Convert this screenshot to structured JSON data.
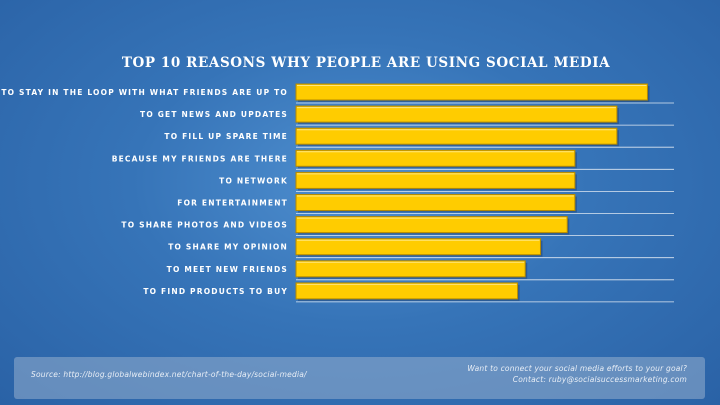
{
  "chart_data": {
    "type": "bar",
    "orientation": "horizontal",
    "title": "TOP 10 REASONS WHY PEOPLE ARE USING SOCIAL MEDIA",
    "categories": [
      "TO STAY IN THE LOOP WITH WHAT FRIENDS ARE UP TO",
      "TO GET NEWS AND UPDATES",
      "TO FILL UP SPARE TIME",
      "BECAUSE MY FRIENDS ARE THERE",
      "TO NETWORK",
      "FOR ENTERTAINMENT",
      "TO SHARE PHOTOS AND VIDEOS",
      "TO SHARE MY OPINION",
      "TO MEET NEW FRIENDS",
      "TO FIND PRODUCTS TO BUY"
    ],
    "values": [
      92,
      84,
      84,
      73,
      73,
      73,
      71,
      64,
      60,
      58
    ],
    "xlim": [
      0,
      100
    ],
    "bar_color": "#ffcc00",
    "bar_border_color": "#b58a00",
    "gridline_color": "#dfe8f2"
  },
  "footer": {
    "source": "Source: http://blog.globalwebindex.net/chart-of-the-day/social-media/",
    "cta_line1": "Want to connect your social media efforts to your goal?",
    "cta_line2": "Contact: ruby@socialsuccessmarketing.com"
  },
  "colors": {
    "background": "#3674b8",
    "title": "#ffffff"
  }
}
